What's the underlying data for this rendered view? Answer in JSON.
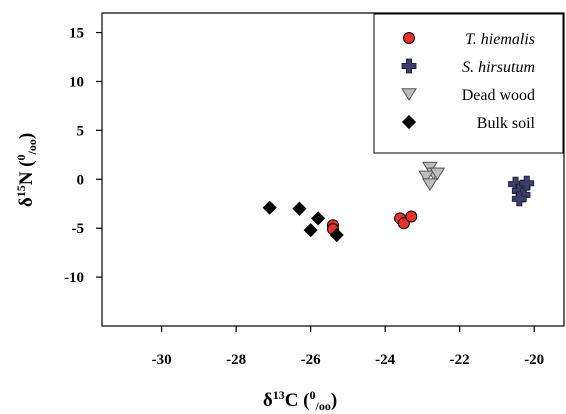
{
  "chart_data": {
    "type": "scatter",
    "xlabel": {
      "base": "δ",
      "sup": "13",
      "main": "C (",
      "permil_sup": "0",
      "permil_sub": "/oo",
      "close": ")"
    },
    "ylabel": {
      "base": "δ",
      "sup": "15",
      "main": "N (",
      "permil_sup": "0",
      "permil_sub": "/oo",
      "close": ")"
    },
    "xlim": [
      -31.6,
      -19.2
    ],
    "ylim": [
      -15,
      17
    ],
    "x_ticks": [
      -30,
      -28,
      -26,
      -24,
      -22,
      -20
    ],
    "y_ticks": [
      -10,
      -5,
      0,
      5,
      10,
      15
    ],
    "grid": false,
    "legend_position": "top-right",
    "series": [
      {
        "name": "T. hiemalis",
        "marker": "circle",
        "color": "#e8322a",
        "x": [
          -25.4,
          -25.4,
          -23.6,
          -23.5,
          -23.3
        ],
        "y": [
          -4.7,
          -5.1,
          -4.0,
          -4.5,
          -3.8
        ]
      },
      {
        "name": "S. hirsutum",
        "marker": "plus",
        "color": "#3b3f6a",
        "x": [
          -20.5,
          -20.3,
          -20.4,
          -20.3,
          -20.4,
          -20.2
        ],
        "y": [
          -0.5,
          -0.8,
          -1.2,
          -1.6,
          -2.0,
          -0.4
        ]
      },
      {
        "name": "Dead wood",
        "marker": "triangle-down",
        "color": "#bdbdbd",
        "x": [
          -22.8,
          -22.7,
          -22.9,
          -22.6,
          -22.8
        ],
        "y": [
          1.2,
          0.6,
          0.3,
          0.6,
          -0.5
        ]
      },
      {
        "name": "Bulk soil",
        "marker": "diamond",
        "color": "#000000",
        "x": [
          -27.1,
          -26.3,
          -26.0,
          -25.8,
          -25.3
        ],
        "y": [
          -2.9,
          -3.0,
          -5.2,
          -4.0,
          -5.7
        ]
      }
    ]
  }
}
